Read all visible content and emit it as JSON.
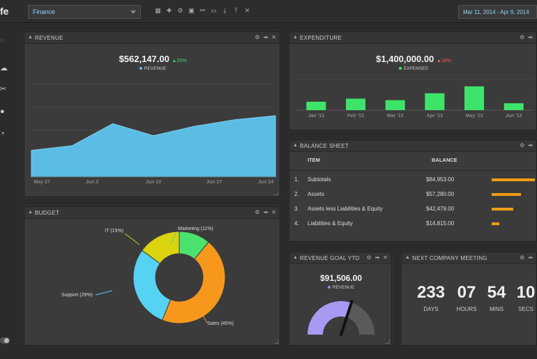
{
  "app": {
    "logo": "fe"
  },
  "toolbar": {
    "dashboard_select": "Finance",
    "date_range": "Mar 11, 2014 - Apr 9, 2014"
  },
  "revenue": {
    "title": "REVENUE",
    "total": "$562,147.00",
    "delta": "▲25%",
    "legend": "REVENUE",
    "color": "#5bbde4",
    "delta_color": "#3ddc5a"
  },
  "expenditure": {
    "title": "EXPENDITURE",
    "total": "$1,400,000.00",
    "delta": "▲16%",
    "legend": "EXPENSES",
    "color": "#3ee46a",
    "delta_color": "#ff5555"
  },
  "budget": {
    "title": "BUDGET",
    "labels": [
      "IT (15%)",
      "Marketing (11%)",
      "Sales (45%)",
      "Support (29%)"
    ]
  },
  "balance_sheet": {
    "title": "BALANCE SHEET",
    "col_item": "ITEM",
    "col_balance": "BALANCE",
    "rows": [
      {
        "num": "1.",
        "item": "Subtotals",
        "balance": "$84,953.00",
        "fraction": 1.0
      },
      {
        "num": "2.",
        "item": "Assets",
        "balance": "$57,280.00",
        "fraction": 0.67
      },
      {
        "num": "3.",
        "item": "Assets less Liabilities & Equity",
        "balance": "$42,479.00",
        "fraction": 0.5
      },
      {
        "num": "4.",
        "item": "Liabilities & Equity",
        "balance": "$14,815.00",
        "fraction": 0.17
      }
    ]
  },
  "revenue_goal": {
    "title": "REVENUE GOAL YTD",
    "total": "$91,506.00",
    "legend": "REVENUE",
    "gauge_fraction": 0.6
  },
  "meeting": {
    "title": "NEXT COMPANY MEETING",
    "days": "233",
    "days_label": "DAYS",
    "hours": "07",
    "hours_label": "HOURS",
    "mins": "54",
    "mins_label": "MINS",
    "secs": "10",
    "secs_label": "SECS"
  },
  "chart_data": [
    {
      "type": "area",
      "title": "REVENUE",
      "categories": [
        "May 27",
        "Jun 3",
        "Jun 10",
        "Jun 17",
        "Jun 24"
      ],
      "x": [
        0,
        1,
        2,
        3,
        4,
        5,
        6
      ],
      "values": [
        40,
        47,
        80,
        62,
        76,
        86,
        92
      ],
      "ylim": [
        0,
        140
      ],
      "series": [
        {
          "name": "REVENUE",
          "values": [
            40,
            47,
            80,
            62,
            76,
            86,
            92
          ]
        }
      ]
    },
    {
      "type": "bar",
      "title": "EXPENDITURE",
      "categories": [
        "Jan '13",
        "Feb '13",
        "Mar '13",
        "Apr '13",
        "May '13",
        "Jun '13"
      ],
      "values": [
        11,
        15,
        13,
        22,
        31,
        9
      ],
      "ylim": [
        0,
        40
      ],
      "series": [
        {
          "name": "EXPENSES",
          "values": [
            11,
            15,
            13,
            22,
            31,
            9
          ]
        }
      ]
    },
    {
      "type": "pie",
      "title": "BUDGET",
      "categories": [
        "Marketing",
        "Sales",
        "Support",
        "IT"
      ],
      "values": [
        11,
        45,
        29,
        15
      ],
      "colors": [
        "#4be36e",
        "#f7981d",
        "#56d2f5",
        "#dcd30f"
      ]
    }
  ]
}
